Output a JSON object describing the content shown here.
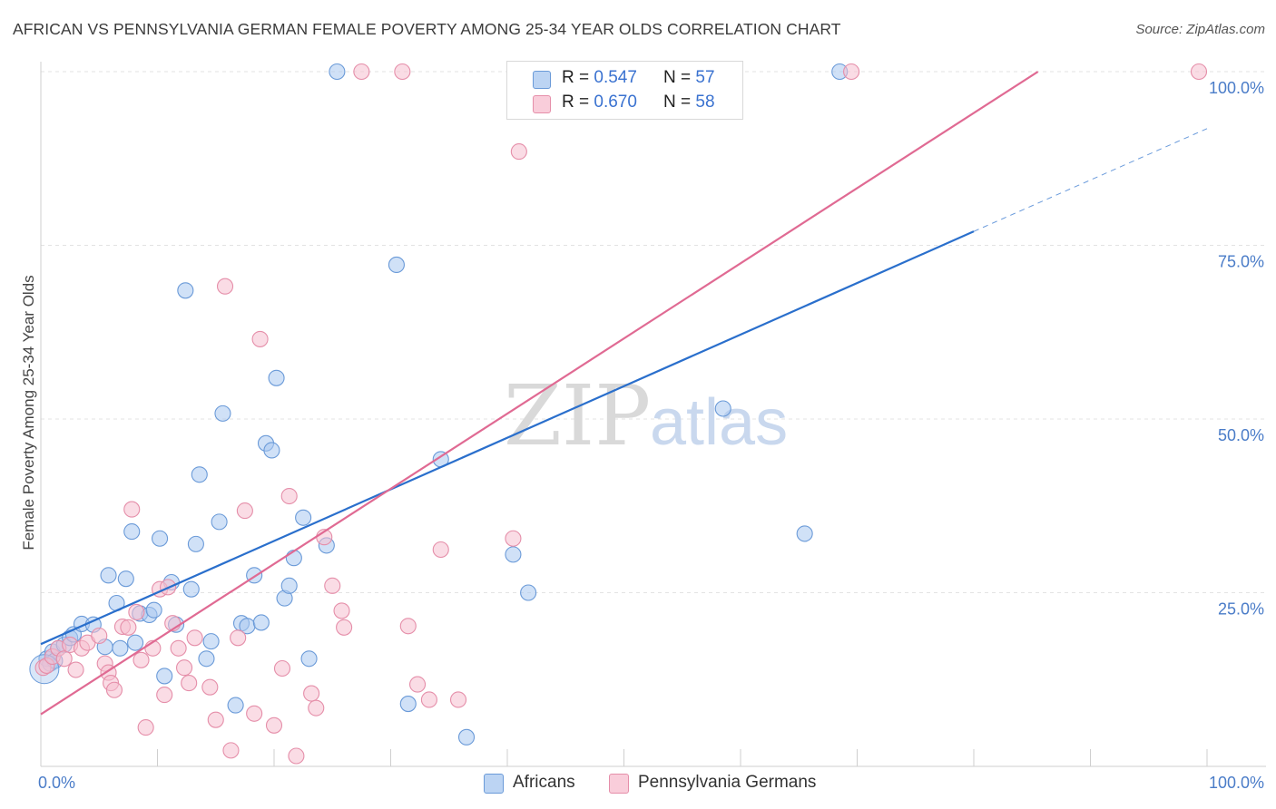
{
  "title": "AFRICAN VS PENNSYLVANIA GERMAN FEMALE POVERTY AMONG 25-34 YEAR OLDS CORRELATION CHART",
  "source": "Source: ZipAtlas.com",
  "watermark": {
    "zip": "ZIP",
    "atlas": "atlas"
  },
  "colors": {
    "africans_fill": "#a9c8f0",
    "africans_stroke": "#6a9ad8",
    "africans_line": "#2a6fcc",
    "pagerman_fill": "#f6bfd0",
    "pagerman_stroke": "#e58ea9",
    "pagerman_line": "#e06a93",
    "tick_text": "#4a7cc8"
  },
  "legend": {
    "rows": [
      {
        "r_label": "R = ",
        "r_value": "0.547",
        "n_label": "N = ",
        "n_value": "57"
      },
      {
        "r_label": "R = ",
        "r_value": "0.670",
        "n_label": "N = ",
        "n_value": "58"
      }
    ]
  },
  "bottom_legend": [
    "Africans",
    "Pennsylvania Germans"
  ],
  "chart_data": {
    "type": "scatter",
    "title": "AFRICAN VS PENNSYLVANIA GERMAN FEMALE POVERTY AMONG 25-34 YEAR OLDS CORRELATION CHART",
    "xlabel": "",
    "ylabel": "Female Poverty Among 25-34 Year Olds",
    "xlim": [
      0,
      100
    ],
    "ylim": [
      0,
      100
    ],
    "x_tick_labels": [
      "0.0%",
      "100.0%"
    ],
    "y_tick_labels": [
      "25.0%",
      "50.0%",
      "75.0%",
      "100.0%"
    ],
    "y_ticks": [
      25,
      50,
      75,
      100
    ],
    "grid": true,
    "legend_position": "top-center",
    "series": [
      {
        "name": "Africans",
        "r": 0.547,
        "n": 57,
        "trend": {
          "x0": 0,
          "y0": 17.6,
          "x1": 80,
          "y1": 77,
          "dashed_to_x": 100,
          "dashed_to_y": 91.8
        },
        "points": [
          [
            0.5,
            15.5
          ],
          [
            0.8,
            14.8
          ],
          [
            1.0,
            16.5
          ],
          [
            1.2,
            15.2
          ],
          [
            1.5,
            17.0
          ],
          [
            2.0,
            17.5
          ],
          [
            2.5,
            18.5
          ],
          [
            2.8,
            19.0
          ],
          [
            3.5,
            20.5
          ],
          [
            4.5,
            20.4
          ],
          [
            5.5,
            17.2
          ],
          [
            5.8,
            27.5
          ],
          [
            6.5,
            23.5
          ],
          [
            6.8,
            17.0
          ],
          [
            7.3,
            27.0
          ],
          [
            7.8,
            33.8
          ],
          [
            8.1,
            17.8
          ],
          [
            8.5,
            22.0
          ],
          [
            9.3,
            21.8
          ],
          [
            9.7,
            22.5
          ],
          [
            10.2,
            32.8
          ],
          [
            10.6,
            13.0
          ],
          [
            11.2,
            26.5
          ],
          [
            11.6,
            20.4
          ],
          [
            12.4,
            68.5
          ],
          [
            12.9,
            25.5
          ],
          [
            13.3,
            32.0
          ],
          [
            13.6,
            42.0
          ],
          [
            14.2,
            15.5
          ],
          [
            14.6,
            18.0
          ],
          [
            15.3,
            35.2
          ],
          [
            15.6,
            50.8
          ],
          [
            16.7,
            8.8
          ],
          [
            17.2,
            20.6
          ],
          [
            17.7,
            20.2
          ],
          [
            18.3,
            27.5
          ],
          [
            18.9,
            20.7
          ],
          [
            19.3,
            46.5
          ],
          [
            19.8,
            45.5
          ],
          [
            20.2,
            55.9
          ],
          [
            20.9,
            24.2
          ],
          [
            21.3,
            26.0
          ],
          [
            21.7,
            30.0
          ],
          [
            22.5,
            35.8
          ],
          [
            23.0,
            15.5
          ],
          [
            24.5,
            31.8
          ],
          [
            25.4,
            100
          ],
          [
            30.5,
            72.2
          ],
          [
            31.5,
            9.0
          ],
          [
            34.3,
            44.2
          ],
          [
            36.5,
            4.2
          ],
          [
            40.5,
            30.5
          ],
          [
            41.8,
            25.0
          ],
          [
            55.5,
            100
          ],
          [
            58.5,
            51.5
          ],
          [
            65.5,
            33.5
          ],
          [
            68.5,
            100
          ]
        ]
      },
      {
        "name": "Pennsylvania Germans",
        "r": 0.67,
        "n": 58,
        "trend": {
          "x0": 0,
          "y0": 7.5,
          "x1": 85.5,
          "y1": 100
        },
        "points": [
          [
            0.2,
            14.2
          ],
          [
            0.5,
            14.5
          ],
          [
            1.0,
            15.8
          ],
          [
            1.5,
            17.0
          ],
          [
            2.0,
            15.5
          ],
          [
            2.5,
            17.5
          ],
          [
            3.0,
            13.9
          ],
          [
            3.5,
            17.0
          ],
          [
            4.0,
            17.8
          ],
          [
            5.0,
            18.8
          ],
          [
            5.5,
            14.8
          ],
          [
            5.8,
            13.5
          ],
          [
            6.0,
            12.0
          ],
          [
            6.3,
            11.0
          ],
          [
            7.0,
            20.1
          ],
          [
            7.5,
            20.0
          ],
          [
            7.8,
            37.0
          ],
          [
            8.2,
            22.2
          ],
          [
            8.6,
            15.3
          ],
          [
            9.0,
            5.6
          ],
          [
            9.6,
            17.0
          ],
          [
            10.2,
            25.5
          ],
          [
            10.6,
            10.3
          ],
          [
            10.9,
            25.8
          ],
          [
            11.3,
            20.6
          ],
          [
            11.8,
            17.0
          ],
          [
            12.3,
            14.2
          ],
          [
            12.7,
            12.0
          ],
          [
            13.2,
            18.5
          ],
          [
            14.5,
            11.4
          ],
          [
            15.0,
            6.7
          ],
          [
            15.8,
            69.1
          ],
          [
            16.3,
            2.3
          ],
          [
            16.9,
            18.5
          ],
          [
            17.5,
            36.8
          ],
          [
            18.3,
            7.6
          ],
          [
            18.8,
            61.5
          ],
          [
            20.0,
            5.9
          ],
          [
            20.7,
            14.1
          ],
          [
            21.3,
            38.9
          ],
          [
            21.9,
            1.5
          ],
          [
            23.2,
            10.5
          ],
          [
            23.6,
            8.4
          ],
          [
            24.3,
            33.0
          ],
          [
            25.0,
            26.0
          ],
          [
            25.8,
            22.4
          ],
          [
            26.0,
            20.0
          ],
          [
            27.5,
            100
          ],
          [
            31.0,
            100
          ],
          [
            31.5,
            20.2
          ],
          [
            32.3,
            11.8
          ],
          [
            33.3,
            9.6
          ],
          [
            34.3,
            31.2
          ],
          [
            35.8,
            9.6
          ],
          [
            40.5,
            32.8
          ],
          [
            41.0,
            88.5
          ],
          [
            69.5,
            100
          ],
          [
            99.3,
            100
          ]
        ]
      }
    ],
    "cluster_bubble": {
      "x": 0.3,
      "y": 14.0,
      "series": "Africans"
    }
  }
}
